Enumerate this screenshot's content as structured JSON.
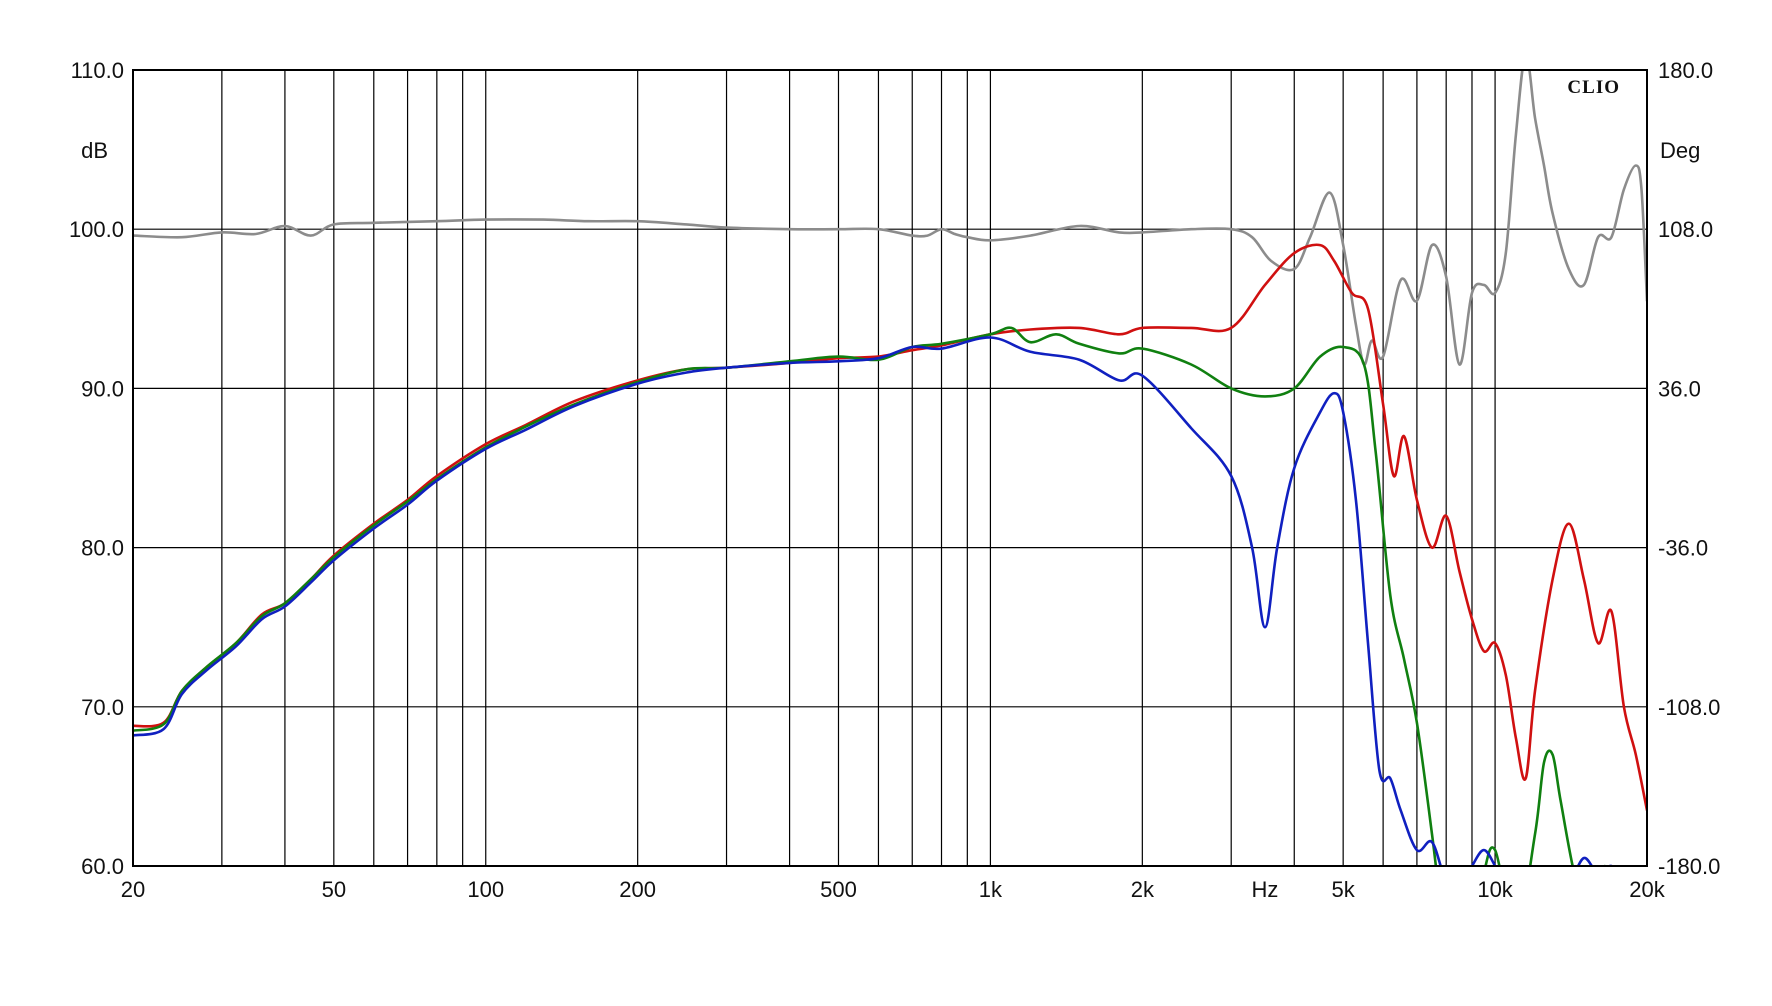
{
  "chart_data": {
    "type": "line",
    "brand": "CLIO",
    "xscale": "log",
    "xlim": [
      20,
      20000
    ],
    "ylim": [
      60,
      110
    ],
    "y2lim": [
      -180,
      180
    ],
    "ylabel": "dB",
    "y2label": "Deg",
    "xlabel": "Hz",
    "grid": true,
    "x_ticks": [
      {
        "value": 20,
        "label": "20"
      },
      {
        "value": 50,
        "label": "50"
      },
      {
        "value": 100,
        "label": "100"
      },
      {
        "value": 200,
        "label": "200"
      },
      {
        "value": 500,
        "label": "500"
      },
      {
        "value": 1000,
        "label": "1k"
      },
      {
        "value": 2000,
        "label": "2k"
      },
      {
        "value": 5000,
        "label": "5k"
      },
      {
        "value": 10000,
        "label": "10k"
      },
      {
        "value": 20000,
        "label": "20k"
      }
    ],
    "x_unit_position": 3500,
    "y_ticks": [
      "110.0",
      "100.0",
      "90.0",
      "80.0",
      "70.0",
      "60.0"
    ],
    "y2_ticks": [
      "180.0",
      "108.0",
      "36.0",
      "-36.0",
      "-108.0",
      "-180.0"
    ],
    "series": [
      {
        "color": "#d01010",
        "axis": "left",
        "x": [
          20,
          23,
          25,
          28,
          32,
          36,
          40,
          45,
          50,
          60,
          70,
          80,
          100,
          120,
          150,
          200,
          250,
          300,
          400,
          500,
          600,
          700,
          800,
          1000,
          1200,
          1500,
          1800,
          2000,
          2500,
          3000,
          3500,
          4000,
          4500,
          4800,
          5200,
          5600,
          6000,
          6300,
          6600,
          7000,
          7500,
          8000,
          8500,
          9000,
          9500,
          10000,
          10500,
          11000,
          11500,
          12000,
          13000,
          14000,
          15000,
          16000,
          17000,
          18000,
          19000,
          20000
        ],
        "y": [
          68.8,
          69.0,
          71.0,
          72.5,
          74.0,
          75.8,
          76.5,
          78.0,
          79.5,
          81.5,
          83.0,
          84.5,
          86.5,
          87.7,
          89.2,
          90.5,
          91.2,
          91.3,
          91.6,
          91.9,
          92.0,
          92.4,
          92.7,
          93.4,
          93.7,
          93.8,
          93.4,
          93.8,
          93.8,
          93.8,
          96.5,
          98.5,
          99.0,
          98.0,
          96.0,
          95.0,
          89.0,
          84.5,
          87.0,
          83.0,
          80.0,
          82.0,
          78.5,
          75.5,
          73.5,
          74.0,
          72.0,
          68.0,
          65.5,
          71.0,
          78.0,
          81.5,
          78.0,
          74.0,
          76.0,
          70.0,
          67.0,
          63.5
        ]
      },
      {
        "color": "#108010",
        "axis": "left",
        "x": [
          20,
          23,
          25,
          28,
          32,
          36,
          40,
          45,
          50,
          60,
          70,
          80,
          100,
          120,
          150,
          200,
          250,
          300,
          400,
          500,
          600,
          700,
          800,
          1000,
          1100,
          1200,
          1350,
          1500,
          1800,
          2000,
          2500,
          3000,
          3500,
          4000,
          4500,
          5000,
          5500,
          5800,
          6200,
          6600,
          7000,
          7500,
          8000,
          8500,
          9000,
          9500,
          10000,
          11000,
          12000,
          12500,
          13000,
          13500,
          14500,
          15500,
          16500,
          17500,
          18500,
          19500,
          20000
        ],
        "y": [
          68.5,
          68.9,
          71.0,
          72.5,
          74.0,
          75.7,
          76.5,
          78.0,
          79.4,
          81.4,
          82.9,
          84.3,
          86.3,
          87.6,
          89.0,
          90.4,
          91.2,
          91.3,
          91.7,
          92.0,
          91.8,
          92.6,
          92.8,
          93.4,
          93.8,
          92.9,
          93.4,
          92.8,
          92.2,
          92.5,
          91.5,
          90.0,
          89.5,
          90.0,
          92.0,
          92.6,
          91.5,
          86.0,
          77.0,
          73.0,
          69.0,
          62.0,
          55.0,
          53.0,
          55.0,
          59.5,
          61.0,
          56.0,
          62.0,
          66.5,
          67.0,
          64.0,
          59.0,
          58.0,
          60.0,
          58.0,
          59.5,
          57.5,
          56.0
        ]
      },
      {
        "color": "#1020c0",
        "axis": "left",
        "x": [
          20,
          23,
          25,
          28,
          32,
          36,
          40,
          45,
          50,
          60,
          70,
          80,
          100,
          120,
          150,
          200,
          250,
          300,
          400,
          500,
          600,
          700,
          800,
          1000,
          1200,
          1500,
          1800,
          2000,
          2500,
          3000,
          3300,
          3500,
          3700,
          4000,
          4500,
          4800,
          5000,
          5300,
          5600,
          5900,
          6200,
          6500,
          7000,
          7500,
          8000,
          8500,
          9000,
          9500,
          10000,
          10500,
          11000,
          12000,
          13000,
          14000,
          15000,
          16000,
          17000,
          18000,
          19000,
          20000
        ],
        "y": [
          68.2,
          68.6,
          70.8,
          72.3,
          73.8,
          75.5,
          76.3,
          77.8,
          79.2,
          81.2,
          82.7,
          84.2,
          86.2,
          87.4,
          88.9,
          90.3,
          91.0,
          91.3,
          91.6,
          91.7,
          91.9,
          92.6,
          92.5,
          93.2,
          92.3,
          91.8,
          90.5,
          90.8,
          87.5,
          84.5,
          80.0,
          75.0,
          80.0,
          85.0,
          88.5,
          89.7,
          88.5,
          83.0,
          74.0,
          66.0,
          65.5,
          63.5,
          61.0,
          61.5,
          59.0,
          58.5,
          60.0,
          61.0,
          60.0,
          58.5,
          57.5,
          59.0,
          59.5,
          59.0,
          60.5,
          59.5,
          60.0,
          59.0,
          58.5,
          57.0
        ]
      },
      {
        "color": "#8c8c8c",
        "axis": "right",
        "x": [
          20,
          25,
          30,
          35,
          40,
          45,
          50,
          60,
          80,
          100,
          130,
          160,
          200,
          250,
          300,
          400,
          500,
          600,
          700,
          750,
          800,
          850,
          900,
          1000,
          1200,
          1500,
          1800,
          2000,
          2500,
          3000,
          3300,
          3600,
          4000,
          4300,
          4700,
          5000,
          5300,
          5500,
          5700,
          6000,
          6500,
          7000,
          7500,
          8000,
          8500,
          9000,
          9500,
          10000,
          10500,
          11000,
          11500,
          12000,
          12500,
          13000,
          14000,
          15000,
          16000,
          17000,
          18000,
          19000,
          19500,
          20000
        ],
        "y": [
          99.6,
          99.5,
          99.8,
          99.7,
          100.2,
          99.6,
          100.3,
          100.4,
          100.5,
          100.6,
          100.6,
          100.5,
          100.5,
          100.3,
          100.1,
          100.0,
          100.0,
          100.0,
          99.6,
          99.6,
          100.0,
          99.7,
          99.5,
          99.3,
          99.6,
          100.2,
          99.8,
          99.8,
          100.0,
          100.0,
          99.5,
          98.0,
          97.5,
          99.5,
          102.3,
          99.0,
          94.0,
          91.5,
          93.0,
          92.0,
          96.8,
          95.5,
          99.0,
          97.0,
          91.5,
          96.0,
          96.5,
          96.0,
          98.5,
          106.0,
          111.0,
          107.0,
          104.0,
          101.0,
          97.5,
          96.5,
          99.5,
          99.5,
          102.5,
          104.0,
          102.5,
          95.5
        ]
      }
    ]
  }
}
